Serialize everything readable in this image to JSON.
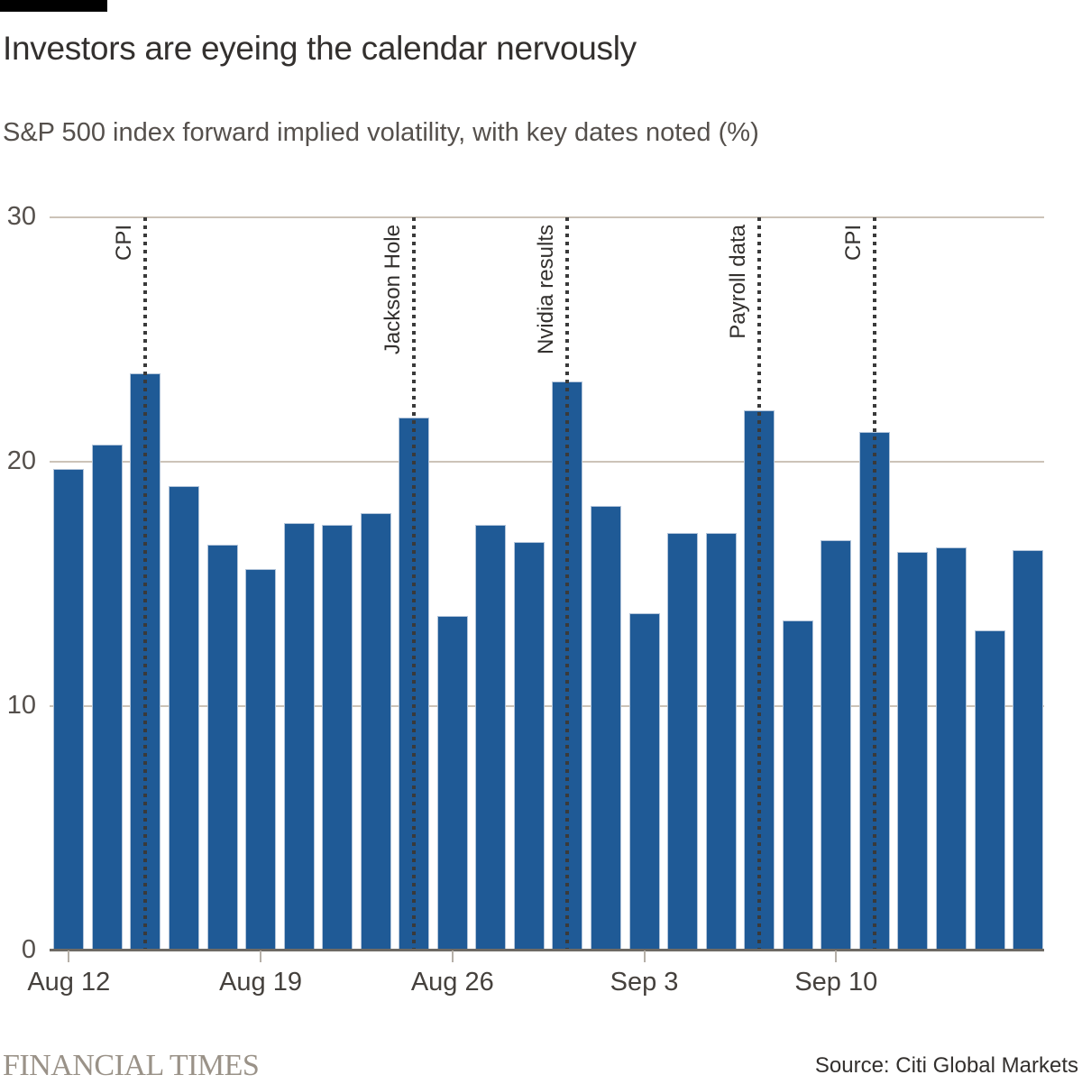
{
  "header": {
    "title": "Investors are eyeing the calendar nervously",
    "subtitle": "S&P 500 index forward implied volatility, with key dates noted (%)"
  },
  "footer": {
    "brand": "FINANCIAL TIMES",
    "source": "Source: Citi Global Markets"
  },
  "colors": {
    "black_bar": "#000000",
    "bar": "#1f5a96",
    "bar_edge": "#b3c5da",
    "gridline": "#ccc3b8",
    "axis_line": "#6e6a64",
    "tick": "#b5afa7",
    "event_line": "#3a3a3a",
    "text_dark": "#33302e",
    "text_muted": "#55504c",
    "text_x": "#45413d",
    "brand": "#9a9288"
  },
  "chart_data": {
    "type": "bar",
    "title": "Investors are eyeing the calendar nervously",
    "subtitle": "S&P 500 index forward implied volatility, with key dates noted (%)",
    "ylabel": "",
    "xlabel": "",
    "ylim": [
      0,
      30
    ],
    "yticks": [
      30,
      20,
      10,
      0
    ],
    "grid": "horizontal",
    "legend": "none",
    "values": [
      19.7,
      20.7,
      23.6,
      19.0,
      16.6,
      15.6,
      17.5,
      17.4,
      17.9,
      21.8,
      13.7,
      17.4,
      16.7,
      23.3,
      18.2,
      13.8,
      17.1,
      17.1,
      22.1,
      13.5,
      16.8,
      21.2,
      16.3,
      16.5,
      13.1,
      16.4
    ],
    "xticks": [
      {
        "label": "Aug 12",
        "bar_index": 0
      },
      {
        "label": "Aug 19",
        "bar_index": 5
      },
      {
        "label": "Aug 26",
        "bar_index": 10
      },
      {
        "label": "Sep 3",
        "bar_index": 15
      },
      {
        "label": "Sep 10",
        "bar_index": 20
      }
    ],
    "annotations": [
      {
        "label": "CPI",
        "bar_index": 2
      },
      {
        "label": "Jackson Hole",
        "bar_index": 9
      },
      {
        "label": "Nvidia results",
        "bar_index": 13
      },
      {
        "label": "Payroll data",
        "bar_index": 18
      },
      {
        "label": "CPI",
        "bar_index": 21
      }
    ]
  }
}
